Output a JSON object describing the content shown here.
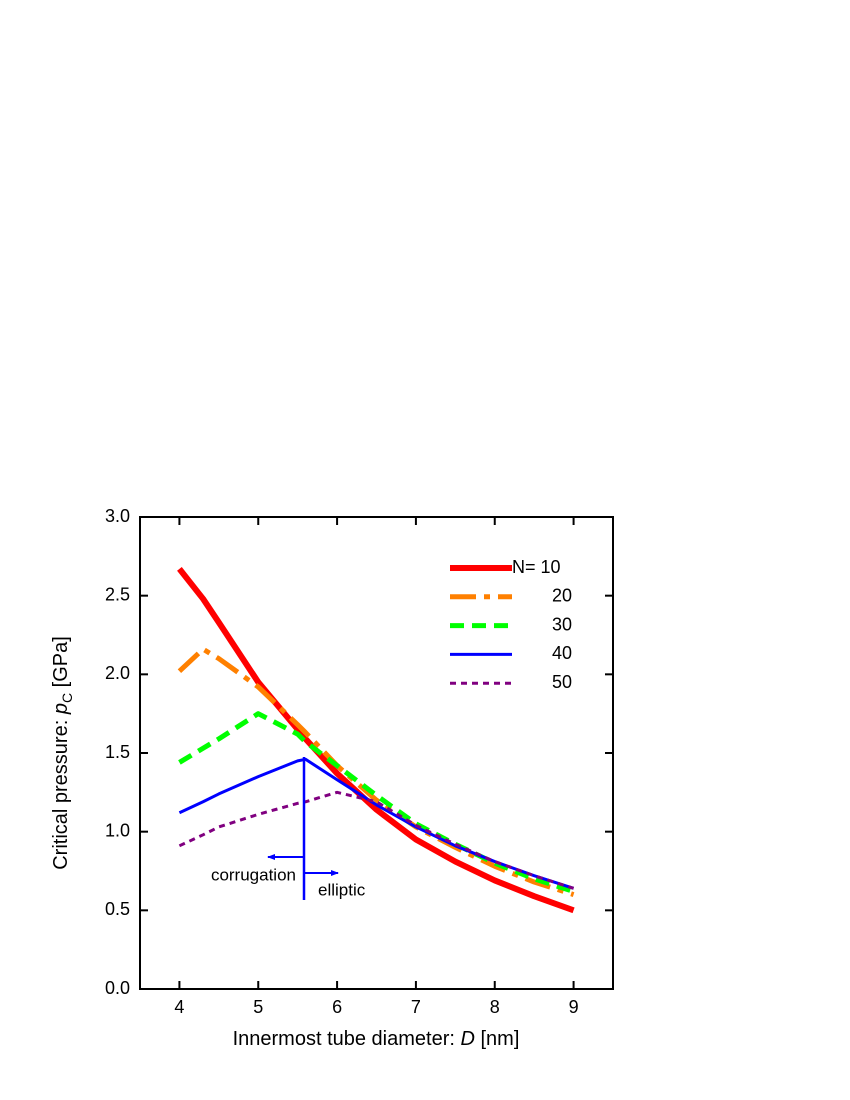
{
  "chart_data": {
    "type": "line",
    "xlabel": {
      "text": "Innermost tube diameter: ",
      "italic": "D",
      "unit": " [nm]"
    },
    "ylabel": {
      "text": "Critical pressure: ",
      "italic": "p",
      "sub": "C",
      "unit": " [GPa]"
    },
    "x": [
      4,
      4.3,
      4.5,
      5,
      5.5,
      5.6,
      6,
      6.5,
      7,
      7.5,
      8,
      8.5,
      9
    ],
    "series": [
      {
        "name": "N= 10",
        "color": "#ff0000",
        "style": "solid-thick",
        "values": [
          2.67,
          2.48,
          2.33,
          1.95,
          1.65,
          1.59,
          1.37,
          1.14,
          0.95,
          0.81,
          0.69,
          0.59,
          0.5
        ]
      },
      {
        "name": "20",
        "color": "#ff8000",
        "style": "dash-dot",
        "values": [
          2.02,
          2.16,
          2.1,
          1.92,
          1.68,
          1.63,
          1.42,
          1.2,
          1.03,
          0.9,
          0.78,
          0.68,
          0.6
        ]
      },
      {
        "name": "30",
        "color": "#00ff00",
        "style": "dash",
        "values": [
          1.44,
          1.53,
          1.59,
          1.75,
          1.62,
          1.57,
          1.42,
          1.23,
          1.05,
          0.92,
          0.8,
          0.7,
          0.62
        ]
      },
      {
        "name": "40",
        "color": "#0000ff",
        "style": "solid",
        "values": [
          1.12,
          1.19,
          1.24,
          1.35,
          1.45,
          1.46,
          1.33,
          1.17,
          1.03,
          0.91,
          0.81,
          0.72,
          0.64
        ]
      },
      {
        "name": "50",
        "color": "#800080",
        "style": "dot",
        "values": [
          0.91,
          0.98,
          1.03,
          1.11,
          1.18,
          1.19,
          1.25,
          1.19,
          1.04,
          0.92,
          0.81,
          0.72,
          0.64
        ]
      }
    ],
    "xlim": [
      3.5,
      9.5
    ],
    "xticks": [
      4,
      5,
      6,
      7,
      8,
      9
    ],
    "ylim": [
      0,
      3
    ],
    "yticks": [
      {
        "value": 0,
        "label": "0.0"
      },
      0.5,
      {
        "value": 1,
        "label": "1.0"
      },
      1.5,
      {
        "value": 2,
        "label": "2.0"
      },
      2.5,
      {
        "value": 3,
        "label": "3.0"
      }
    ],
    "annotations": [
      "corrugation",
      "elliptic"
    ],
    "legend": "upper right",
    "grid": false
  }
}
